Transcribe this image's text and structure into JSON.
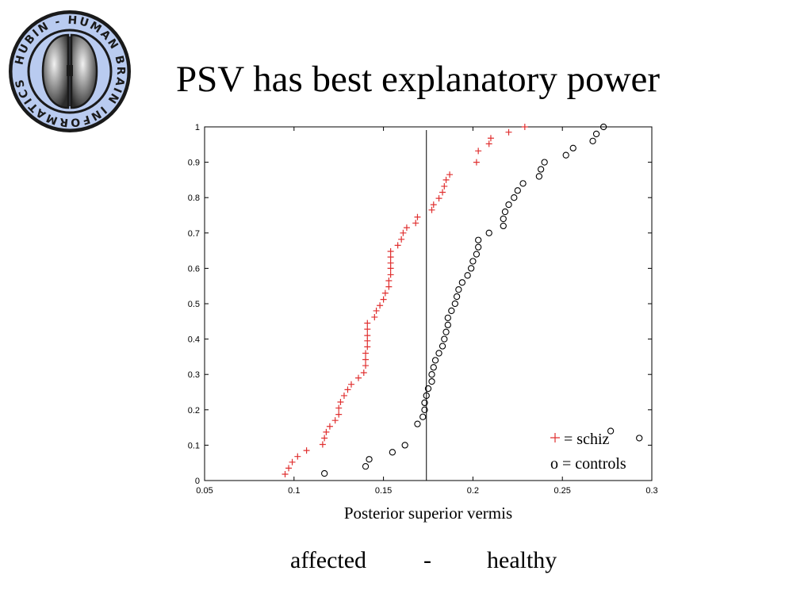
{
  "slide": {
    "title": "PSV has best explanatory power",
    "footer": {
      "left": "affected",
      "separator": "-",
      "right": "healthy"
    }
  },
  "logo": {
    "icon": "hubin-brain-logo",
    "ring_text": "HUBIN - HUMAN BRAIN INFORMATICS -",
    "colors": {
      "ring": "#b9cbf0",
      "edge": "#1a1a1a",
      "brain": "#7a7a7a"
    }
  },
  "colors": {
    "schiz": "#e03030",
    "controls": "#000000",
    "axis": "#000000"
  },
  "chart_data": {
    "type": "scatter",
    "title": "",
    "xlabel": "Posterior superior vermis",
    "ylabel": "",
    "xlim": [
      0.05,
      0.3
    ],
    "ylim": [
      0,
      1
    ],
    "xticks": [
      0.05,
      0.1,
      0.15,
      0.2,
      0.25,
      0.3
    ],
    "xtick_labels": [
      "0.05",
      "0.1",
      "0.15",
      "0.2",
      "0.25",
      "0.3"
    ],
    "yticks": [
      0,
      0.1,
      0.2,
      0.3,
      0.4,
      0.5,
      0.6,
      0.7,
      0.8,
      0.9,
      1
    ],
    "ytick_labels": [
      "0",
      "0.1",
      "0.2",
      "0.3",
      "0.4",
      "0.5",
      "0.6",
      "0.7",
      "0.8",
      "0.9",
      "1"
    ],
    "grid": false,
    "legend": {
      "position": "bottom-right",
      "entries": [
        {
          "marker": "+",
          "label": "= schiz"
        },
        {
          "marker": "o",
          "label": "o = controls"
        }
      ]
    },
    "vline": {
      "x": 0.174
    },
    "series": [
      {
        "name": "schiz",
        "marker": "+",
        "color": "#e03030",
        "x": [
          0.095,
          0.097,
          0.099,
          0.102,
          0.107,
          0.116,
          0.117,
          0.118,
          0.12,
          0.123,
          0.125,
          0.125,
          0.126,
          0.128,
          0.13,
          0.132,
          0.136,
          0.139,
          0.14,
          0.14,
          0.14,
          0.141,
          0.141,
          0.141,
          0.141,
          0.141,
          0.145,
          0.146,
          0.148,
          0.15,
          0.151,
          0.153,
          0.153,
          0.154,
          0.154,
          0.154,
          0.154,
          0.154,
          0.158,
          0.16,
          0.161,
          0.163,
          0.168,
          0.169,
          0.177,
          0.178,
          0.181,
          0.183,
          0.184,
          0.185,
          0.187,
          0.202,
          0.203,
          0.209,
          0.21,
          0.22,
          0.229
        ],
        "y": [
          0.018,
          0.035,
          0.052,
          0.068,
          0.085,
          0.102,
          0.12,
          0.137,
          0.153,
          0.17,
          0.187,
          0.205,
          0.222,
          0.24,
          0.257,
          0.272,
          0.29,
          0.305,
          0.325,
          0.342,
          0.36,
          0.378,
          0.395,
          0.41,
          0.428,
          0.445,
          0.462,
          0.48,
          0.495,
          0.512,
          0.53,
          0.548,
          0.565,
          0.582,
          0.6,
          0.615,
          0.632,
          0.648,
          0.665,
          0.682,
          0.7,
          0.715,
          0.728,
          0.745,
          0.765,
          0.78,
          0.798,
          0.815,
          0.832,
          0.85,
          0.865,
          0.9,
          0.932,
          0.952,
          0.968,
          0.985,
          1.0
        ]
      },
      {
        "name": "controls",
        "marker": "o",
        "color": "#000000",
        "x": [
          0.117,
          0.14,
          0.142,
          0.155,
          0.162,
          0.169,
          0.172,
          0.173,
          0.173,
          0.174,
          0.175,
          0.177,
          0.177,
          0.178,
          0.179,
          0.181,
          0.183,
          0.184,
          0.185,
          0.186,
          0.186,
          0.188,
          0.19,
          0.191,
          0.192,
          0.194,
          0.197,
          0.199,
          0.2,
          0.202,
          0.203,
          0.203,
          0.209,
          0.217,
          0.217,
          0.218,
          0.22,
          0.223,
          0.225,
          0.228,
          0.237,
          0.238,
          0.24,
          0.252,
          0.256,
          0.267,
          0.269,
          0.273,
          0.277,
          0.293
        ],
        "y": [
          0.02,
          0.04,
          0.06,
          0.08,
          0.1,
          0.16,
          0.18,
          0.2,
          0.22,
          0.24,
          0.26,
          0.28,
          0.3,
          0.32,
          0.34,
          0.36,
          0.38,
          0.4,
          0.42,
          0.44,
          0.46,
          0.48,
          0.5,
          0.52,
          0.54,
          0.56,
          0.58,
          0.6,
          0.62,
          0.64,
          0.66,
          0.68,
          0.7,
          0.72,
          0.74,
          0.76,
          0.78,
          0.8,
          0.82,
          0.84,
          0.86,
          0.88,
          0.9,
          0.92,
          0.94,
          0.96,
          0.98,
          1.0,
          0.14,
          0.12
        ],
        "_note": ""
      }
    ]
  }
}
